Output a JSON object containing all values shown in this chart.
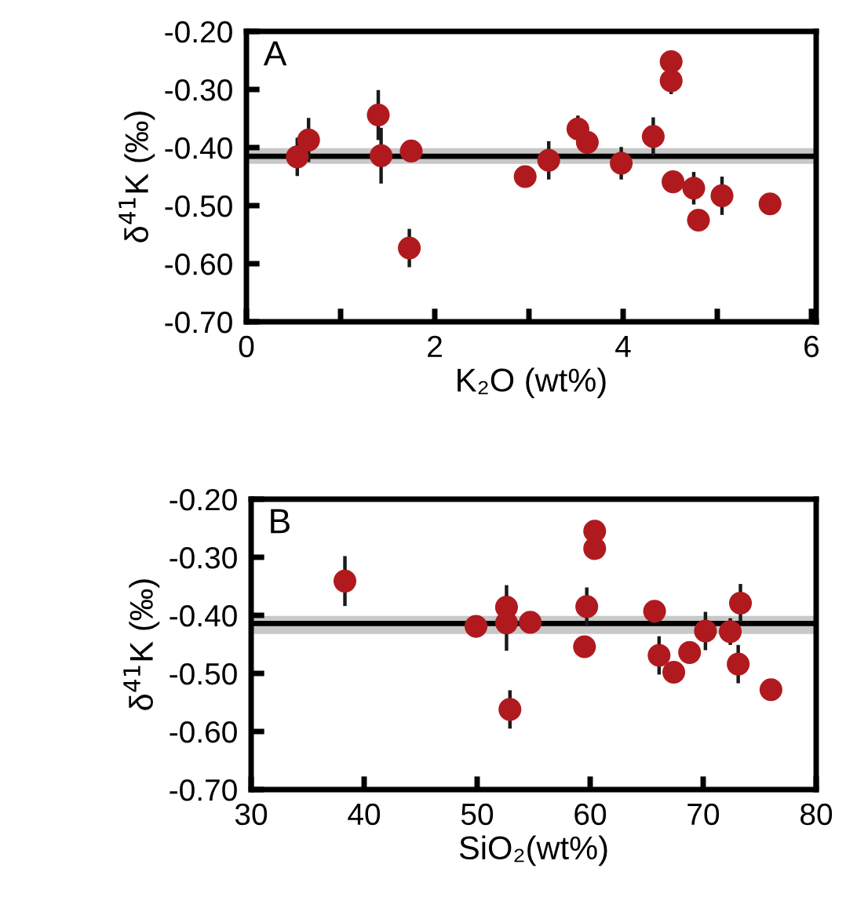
{
  "chart_data": [
    {
      "type": "scatter",
      "xlabel": "K₂O (wt%)",
      "ylabel": "δ$^{41}$K (‰)",
      "annotations": [
        "A"
      ],
      "xlim": [
        0,
        6.05
      ],
      "xticks": [
        0,
        {
          "value": 1,
          "label": null
        },
        2,
        {
          "value": 3,
          "label": null
        },
        4,
        {
          "value": 5,
          "label": null
        },
        6
      ],
      "ylim": [
        -0.7,
        -0.2
      ],
      "yticks": [
        {
          "value": -0.7,
          "label": "-0.70"
        },
        {
          "value": -0.6,
          "label": "-0.60"
        },
        {
          "value": -0.5,
          "label": "-0.50"
        },
        {
          "value": -0.4,
          "label": "-0.40"
        },
        {
          "value": -0.3,
          "label": "-0.30"
        },
        {
          "value": -0.2,
          "label": "-0.20"
        }
      ],
      "marker": "circle",
      "grid": false,
      "legend": false,
      "ref_lines": [
        {
          "axis": "y",
          "value": -0.415,
          "label": null,
          "color": "#000000"
        }
      ],
      "bands": [
        {
          "axis": "y",
          "from": -0.428,
          "to": -0.401,
          "label": null,
          "color": "#c8c8c8"
        }
      ],
      "series": [
        {
          "color": "#b01a1e",
          "x": [
            0.54,
            0.66,
            1.4,
            1.43,
            1.75,
            1.73,
            2.96,
            3.21,
            3.52,
            3.62,
            3.98,
            4.32,
            4.51,
            4.51,
            4.53,
            4.75,
            4.8,
            5.05,
            5.56
          ],
          "values": [
            -0.416,
            -0.387,
            -0.344,
            -0.414,
            -0.406,
            -0.573,
            -0.45,
            -0.422,
            -0.368,
            -0.391,
            -0.427,
            -0.381,
            -0.252,
            -0.285,
            -0.459,
            -0.47,
            -0.525,
            -0.483,
            -0.497
          ],
          "errors": [
            0.03,
            0.035,
            0.04,
            0.045,
            null,
            0.03,
            null,
            0.03,
            0.02,
            null,
            0.025,
            0.03,
            null,
            0.02,
            null,
            0.025,
            null,
            0.03,
            null
          ]
        }
      ]
    },
    {
      "type": "scatter",
      "xlabel": "SiO₂(wt%)",
      "ylabel": "δ$^{41}$K (‰)",
      "annotations": [
        "B"
      ],
      "xlim": [
        30,
        80
      ],
      "xticks": [
        30,
        40,
        50,
        60,
        70,
        80
      ],
      "ylim": [
        -0.7,
        -0.2
      ],
      "yticks": [
        {
          "value": -0.7,
          "label": "-0.70"
        },
        {
          "value": -0.6,
          "label": "-0.60"
        },
        {
          "value": -0.5,
          "label": "-0.50"
        },
        {
          "value": -0.4,
          "label": "-0.40"
        },
        {
          "value": -0.3,
          "label": "-0.30"
        },
        {
          "value": -0.2,
          "label": "-0.20"
        }
      ],
      "marker": "circle",
      "grid": false,
      "legend": false,
      "ref_lines": [
        {
          "axis": "y",
          "value": -0.414,
          "label": null,
          "color": "#000000"
        }
      ],
      "bands": [
        {
          "axis": "y",
          "from": -0.432,
          "to": -0.401,
          "label": null,
          "color": "#c8c8c8"
        }
      ],
      "series": [
        {
          "color": "#b01a1e",
          "x": [
            38.3,
            49.9,
            52.6,
            52.6,
            54.7,
            52.9,
            59.7,
            59.5,
            60.4,
            60.4,
            65.7,
            66.1,
            67.4,
            68.8,
            70.2,
            72.4,
            73.3,
            73.1,
            76.0
          ],
          "values": [
            -0.341,
            -0.419,
            -0.386,
            -0.413,
            -0.412,
            -0.562,
            -0.385,
            -0.454,
            -0.255,
            -0.285,
            -0.393,
            -0.469,
            -0.498,
            -0.464,
            -0.427,
            -0.428,
            -0.379,
            -0.484,
            -0.528
          ],
          "errors": [
            0.04,
            null,
            0.035,
            0.045,
            null,
            0.03,
            0.03,
            null,
            null,
            null,
            null,
            0.03,
            null,
            null,
            0.03,
            0.02,
            0.03,
            0.03,
            null
          ]
        }
      ]
    }
  ]
}
